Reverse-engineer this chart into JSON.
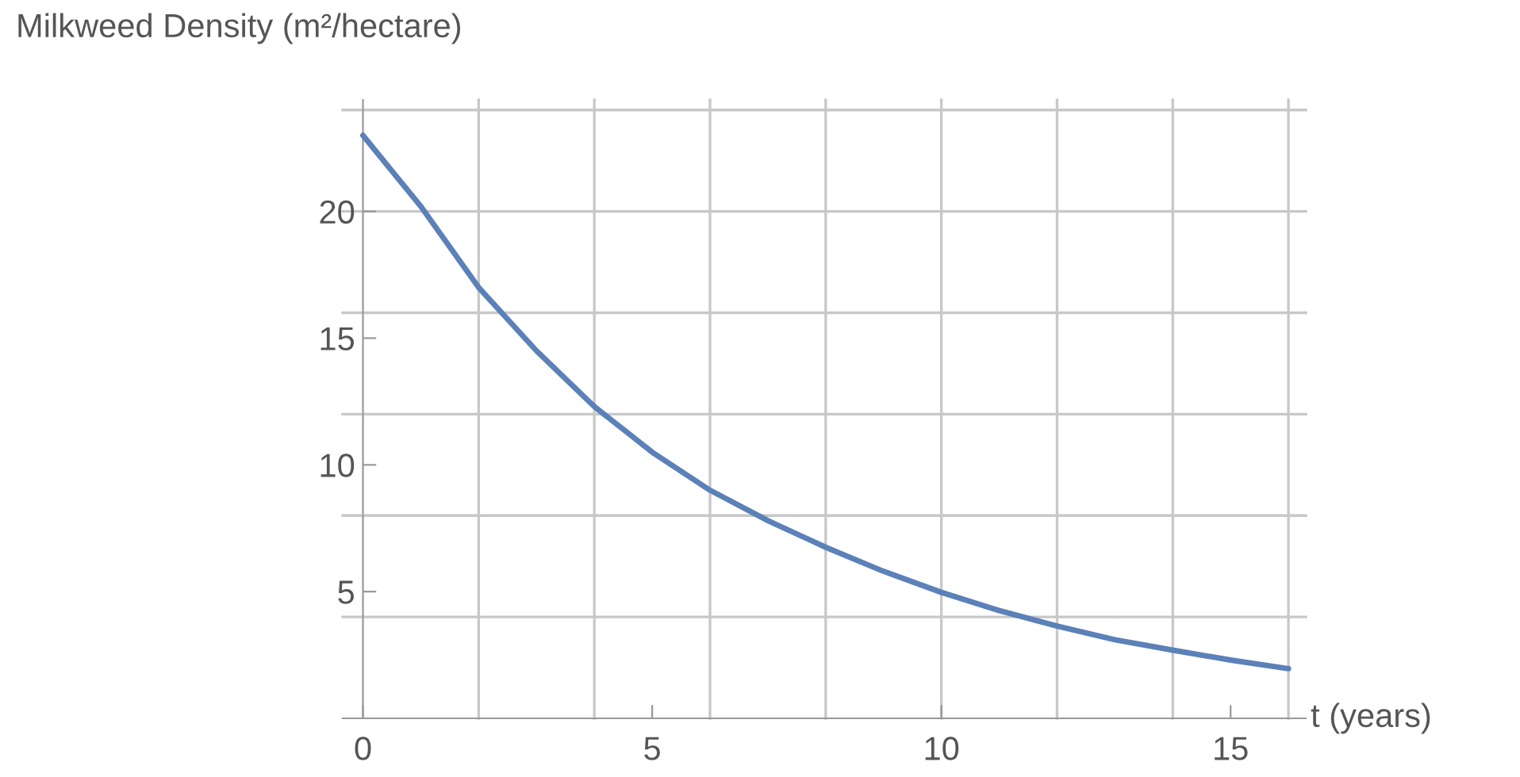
{
  "chart_data": {
    "type": "line",
    "xlabel": "t (years)",
    "ylabel": "Milkweed Density (m²/hectare)",
    "x": [
      0,
      1,
      2,
      3,
      4,
      5,
      6,
      7,
      8,
      9,
      10,
      11,
      12,
      13,
      14,
      15,
      16
    ],
    "series": [
      {
        "color": "#5b81b8",
        "values": [
          23,
          20.2,
          17,
          14.5,
          12.3,
          10.5,
          9.0,
          7.8,
          6.75,
          5.8,
          4.97,
          4.25,
          3.64,
          3.1,
          2.69,
          2.3,
          1.96
        ]
      }
    ],
    "xlim": [
      -0.35,
      16.3
    ],
    "ylim": [
      0,
      24.4
    ],
    "xticks": [
      0,
      5,
      10,
      15
    ],
    "yticks": [
      5,
      10,
      15,
      20
    ],
    "ref_lines": [
      {
        "axis": "x",
        "value": 2,
        "color": "#c8c8c8"
      },
      {
        "axis": "x",
        "value": 4,
        "color": "#c8c8c8"
      },
      {
        "axis": "x",
        "value": 6,
        "color": "#c8c8c8"
      },
      {
        "axis": "x",
        "value": 8,
        "color": "#c8c8c8"
      },
      {
        "axis": "x",
        "value": 10,
        "color": "#c8c8c8"
      },
      {
        "axis": "x",
        "value": 12,
        "color": "#c8c8c8"
      },
      {
        "axis": "x",
        "value": 14,
        "color": "#c8c8c8"
      },
      {
        "axis": "x",
        "value": 16,
        "color": "#c8c8c8"
      },
      {
        "axis": "y",
        "value": 4,
        "color": "#c8c8c8"
      },
      {
        "axis": "y",
        "value": 8,
        "color": "#c8c8c8"
      },
      {
        "axis": "y",
        "value": 12,
        "color": "#c8c8c8"
      },
      {
        "axis": "y",
        "value": 16,
        "color": "#c8c8c8"
      },
      {
        "axis": "y",
        "value": 20,
        "color": "#c8c8c8"
      },
      {
        "axis": "y",
        "value": 24,
        "color": "#c8c8c8"
      }
    ],
    "grid": false,
    "legend": false,
    "marker": "none",
    "line_style": "solid"
  }
}
